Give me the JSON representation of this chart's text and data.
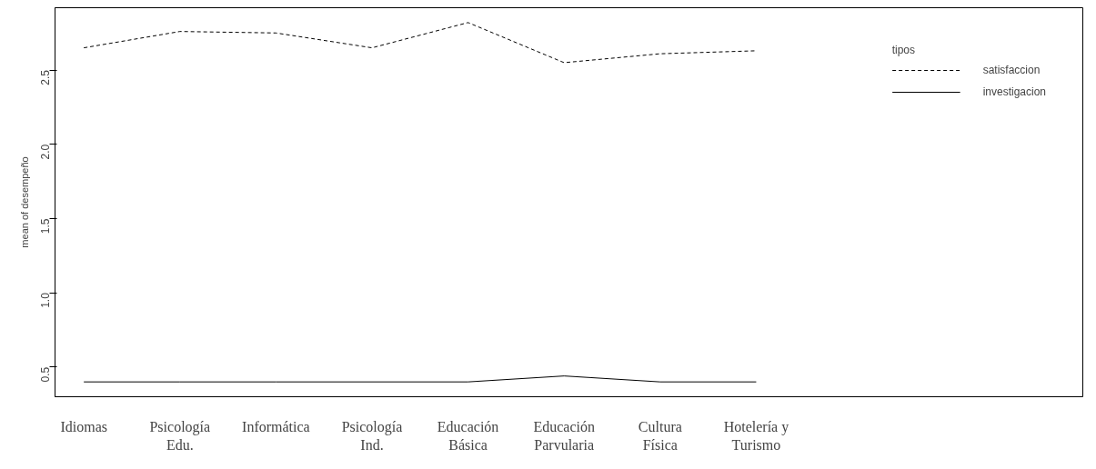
{
  "chart_data": {
    "type": "line",
    "ylabel": "mean of desempeño",
    "legend_title": "tipos",
    "legend": "top right",
    "grid": false,
    "marker": "none",
    "categories": [
      "Idiomas",
      "Psicología\nEdu.",
      "Informática",
      "Psicología\nInd.",
      "Educación\nBásica",
      "Educación\nParvularia",
      "Cultura\nFísica",
      "Hotelería y\nTurismo"
    ],
    "ylim": [
      0.3,
      2.92
    ],
    "yticks": [
      0.5,
      {
        "value": 1,
        "label": "1.0"
      },
      1.5,
      {
        "value": 2,
        "label": "2.0"
      },
      2.5
    ],
    "series": [
      {
        "name": "satisfaccion",
        "color": "#000000",
        "line_style": "dashed",
        "values": [
          2.65,
          2.76,
          2.75,
          2.65,
          2.82,
          2.55,
          2.61,
          2.63
        ]
      },
      {
        "name": "investigacion",
        "color": "#000000",
        "line_style": "solid",
        "values": [
          0.4,
          0.4,
          0.4,
          0.4,
          0.4,
          0.44,
          0.4,
          0.4
        ]
      }
    ]
  }
}
